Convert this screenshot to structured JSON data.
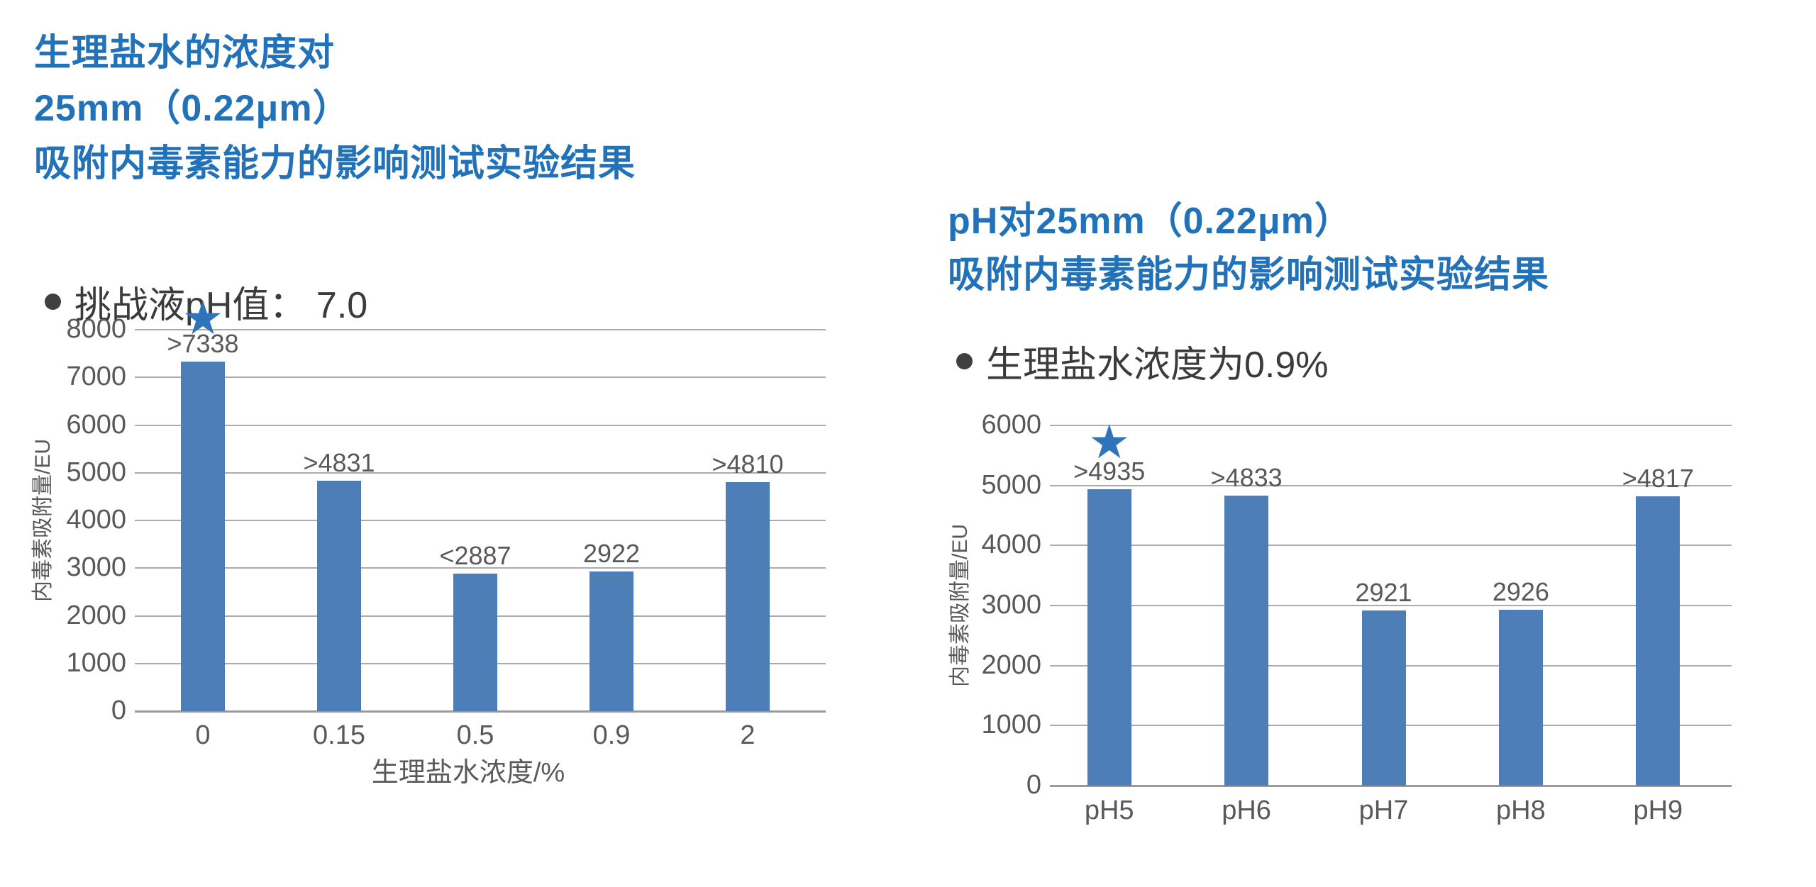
{
  "page": {
    "background": "#ffffff"
  },
  "colors": {
    "title_blue": "#2272b9",
    "bar_fill": "#4e7eb8",
    "star_blue": "#2e74ba",
    "gridline_gray": "#ababab",
    "axis_gray": "#9a9a9a",
    "chart_text_gray": "#595959",
    "bullet_text_gray": "#3b3b3b"
  },
  "left_section": {
    "title_lines": [
      "生理盐水的浓度对",
      "25mm（0.22μm）",
      "吸附内毒素能力的影响测试实验结果"
    ],
    "bullet_text": "挑战液pH值： 7.0"
  },
  "right_section": {
    "title_lines": [
      "pH对25mm（0.22μm）",
      "吸附内毒素能力的影响测试实验结果"
    ],
    "bullet_text": "生理盐水浓度为0.9%"
  },
  "chart_data": [
    {
      "id": "saline-concentration-chart",
      "type": "bar",
      "title": "生理盐水的浓度对25mm（0.22μm）吸附内毒素能力的影响测试实验结果",
      "condition": "挑战液pH值： 7.0",
      "categories": [
        "0",
        "0.15",
        "0.5",
        "0.9",
        "2"
      ],
      "values": [
        7338,
        4831,
        2887,
        2922,
        4810
      ],
      "bar_labels": [
        ">7338",
        ">4831",
        "<2887",
        "2922",
        ">4810"
      ],
      "xlabel": "生理盐水浓度/%",
      "ylabel": "内毒素吸附量/EU",
      "ylim": [
        0,
        8000
      ],
      "ytick_step": 1000,
      "ytick_labels": [
        "0",
        "1000",
        "2000",
        "3000",
        "4000",
        "5000",
        "6000",
        "7000",
        "8000"
      ],
      "grid": true,
      "legend": "none",
      "star_marker_index": 0
    },
    {
      "id": "ph-chart",
      "type": "bar",
      "title": "pH对25mm（0.22μm）吸附内毒素能力的影响测试实验结果",
      "condition": "生理盐水浓度为0.9%",
      "categories": [
        "pH5",
        "pH6",
        "pH7",
        "pH8",
        "pH9"
      ],
      "values": [
        4935,
        4833,
        2921,
        2926,
        4817
      ],
      "bar_labels": [
        ">4935",
        ">4833",
        "2921",
        "2926",
        ">4817"
      ],
      "xlabel": "",
      "ylabel": "内毒素吸附量/EU",
      "ylim": [
        0,
        6000
      ],
      "ytick_step": 1000,
      "ytick_labels": [
        "0",
        "1000",
        "2000",
        "3000",
        "4000",
        "5000",
        "6000"
      ],
      "grid": true,
      "legend": "none",
      "star_marker_index": 0
    }
  ]
}
